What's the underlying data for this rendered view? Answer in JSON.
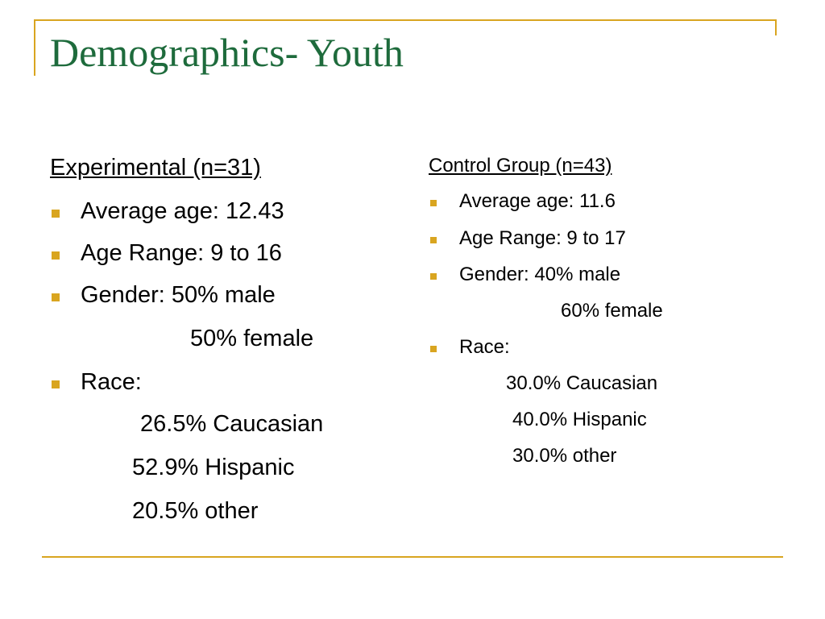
{
  "title": "Demographics- Youth",
  "colors": {
    "accent": "#d9a520",
    "title": "#1e6b3c"
  },
  "experimental": {
    "heading": "Experimental  (n=31)",
    "average_age": "Average age: 12.43",
    "age_range": "Age Range:  9 to 16",
    "gender_male": "Gender: 50% male",
    "gender_female": "50% female",
    "race_label": "Race:",
    "race_caucasian": "26.5% Caucasian",
    "race_hispanic": "52.9% Hispanic",
    "race_other": "20.5% other"
  },
  "control": {
    "heading": "Control Group (n=43)",
    "average_age": "Average age: 11.6",
    "age_range": "Age Range:  9 to 17",
    "gender_male": "Gender: 40% male",
    "gender_female": "60% female",
    "race_label": "Race:",
    "race_caucasian": "30.0% Caucasian",
    "race_hispanic": "40.0% Hispanic",
    "race_other": "30.0% other"
  }
}
